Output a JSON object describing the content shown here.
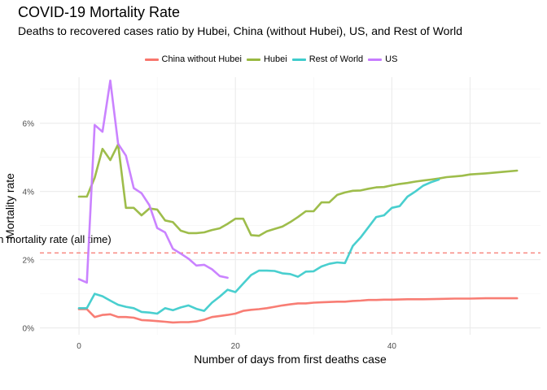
{
  "title": "COVID-19 Mortality Rate",
  "subtitle": "Deaths to recovered cases ratio by Hubei, China (without Hubei), US, and Rest of World",
  "chart_data": {
    "type": "line",
    "xlabel": "Number of days from first deaths case",
    "ylabel": "Mortality rate",
    "xlim": [
      -5,
      59
    ],
    "ylim": [
      -0.2,
      7.35
    ],
    "x_ticks": [
      0,
      20,
      40
    ],
    "x_tick_labels": [
      "0",
      "20",
      "40"
    ],
    "y_ticks": [
      0,
      2,
      4,
      6
    ],
    "y_tick_labels": [
      "0%",
      "2%",
      "4%",
      "6%"
    ],
    "grid": true,
    "legend_position": "top",
    "reference_line": {
      "value": 2.2,
      "label": "Mean mortality rate (all time)",
      "color": "#f8766d",
      "style": "dashed"
    },
    "series": [
      {
        "name": "China without Hubei",
        "color": "#f8766d",
        "x": [
          0,
          1,
          2,
          3,
          4,
          5,
          6,
          7,
          8,
          9,
          10,
          11,
          12,
          13,
          14,
          15,
          16,
          17,
          18,
          19,
          20,
          21,
          22,
          23,
          24,
          25,
          26,
          27,
          28,
          29,
          30,
          31,
          32,
          33,
          34,
          35,
          36,
          37,
          38,
          39,
          40,
          42,
          44,
          46,
          48,
          50,
          52,
          54,
          56
        ],
        "y": [
          0.55,
          0.55,
          0.32,
          0.38,
          0.4,
          0.32,
          0.32,
          0.3,
          0.23,
          0.22,
          0.2,
          0.18,
          0.16,
          0.17,
          0.17,
          0.19,
          0.24,
          0.32,
          0.35,
          0.38,
          0.42,
          0.5,
          0.53,
          0.55,
          0.58,
          0.62,
          0.66,
          0.69,
          0.72,
          0.72,
          0.74,
          0.75,
          0.76,
          0.77,
          0.77,
          0.79,
          0.8,
          0.82,
          0.82,
          0.83,
          0.83,
          0.84,
          0.84,
          0.85,
          0.86,
          0.86,
          0.87,
          0.87,
          0.87
        ]
      },
      {
        "name": "Hubei",
        "color": "#99b941",
        "x": [
          0,
          1,
          2,
          3,
          4,
          5,
          6,
          7,
          8,
          9,
          10,
          11,
          12,
          13,
          14,
          15,
          16,
          17,
          18,
          19,
          20,
          21,
          22,
          23,
          24,
          25,
          26,
          27,
          28,
          29,
          30,
          31,
          32,
          33,
          34,
          35,
          36,
          37,
          38,
          39,
          40,
          41,
          42,
          43,
          44,
          45,
          46,
          47,
          48,
          49,
          50,
          52,
          54,
          56
        ],
        "y": [
          3.85,
          3.85,
          4.4,
          5.25,
          4.92,
          5.38,
          3.52,
          3.52,
          3.3,
          3.5,
          3.47,
          3.15,
          3.1,
          2.85,
          2.78,
          2.78,
          2.8,
          2.87,
          2.92,
          3.05,
          3.2,
          3.2,
          2.72,
          2.7,
          2.83,
          2.9,
          2.97,
          3.1,
          3.25,
          3.42,
          3.42,
          3.68,
          3.68,
          3.9,
          3.97,
          4.02,
          4.03,
          4.08,
          4.12,
          4.13,
          4.18,
          4.22,
          4.25,
          4.29,
          4.32,
          4.35,
          4.38,
          4.42,
          4.44,
          4.46,
          4.5,
          4.53,
          4.57,
          4.61
        ]
      },
      {
        "name": "Rest of World",
        "color": "#3fcccc",
        "x": [
          0,
          1,
          2,
          3,
          4,
          5,
          6,
          7,
          8,
          9,
          10,
          11,
          12,
          13,
          14,
          15,
          16,
          17,
          18,
          19,
          20,
          21,
          22,
          23,
          24,
          25,
          26,
          27,
          28,
          29,
          30,
          31,
          32,
          33,
          34,
          35,
          36,
          37,
          38,
          39,
          40,
          41,
          42,
          43,
          44,
          45,
          46
        ],
        "y": [
          0.58,
          0.58,
          1.0,
          0.93,
          0.8,
          0.68,
          0.62,
          0.58,
          0.47,
          0.45,
          0.42,
          0.58,
          0.52,
          0.6,
          0.66,
          0.56,
          0.5,
          0.74,
          0.92,
          1.12,
          1.05,
          1.3,
          1.55,
          1.68,
          1.68,
          1.67,
          1.6,
          1.58,
          1.5,
          1.65,
          1.66,
          1.8,
          1.88,
          1.92,
          1.9,
          2.4,
          2.65,
          2.95,
          3.25,
          3.3,
          3.52,
          3.57,
          3.85,
          4.0,
          4.17,
          4.27,
          4.35
        ]
      },
      {
        "name": "US",
        "color": "#c77cff",
        "x": [
          0,
          1,
          2,
          3,
          4,
          5,
          6,
          7,
          8,
          9,
          10,
          11,
          12,
          13,
          14,
          15,
          16,
          17,
          18,
          19
        ],
        "y": [
          1.43,
          1.33,
          5.95,
          5.75,
          7.25,
          5.4,
          5.05,
          4.1,
          3.95,
          3.6,
          2.93,
          2.8,
          2.32,
          2.18,
          2.03,
          1.83,
          1.85,
          1.72,
          1.52,
          1.47
        ]
      }
    ]
  }
}
